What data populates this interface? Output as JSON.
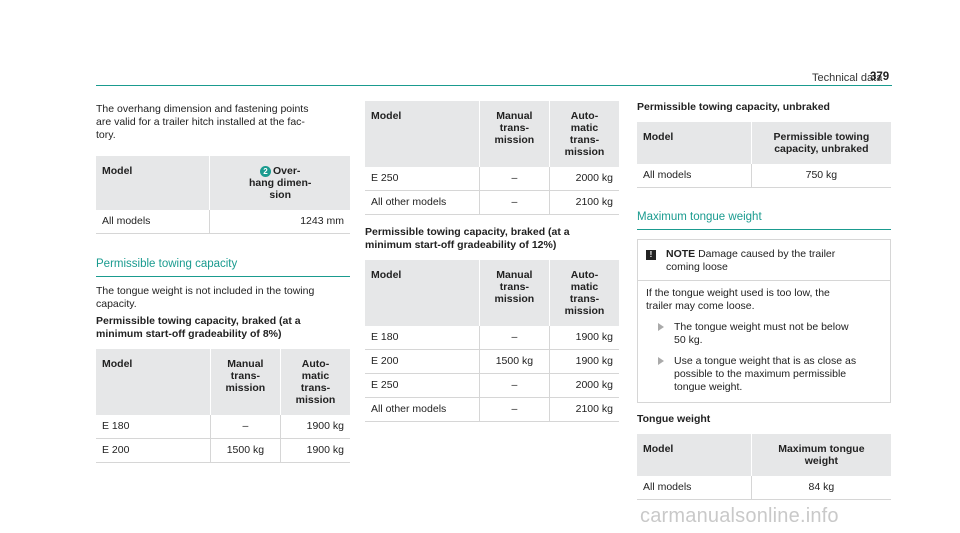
{
  "header": {
    "title": "Technical data",
    "page": "379"
  },
  "col1": {
    "intro": [
      "The overhang dimension and fastening points",
      "are valid for a trailer hitch installed at the fac-",
      "tory."
    ],
    "overhang_table": {
      "h_model": "Model",
      "h_badge": "2",
      "h_over": [
        "Over-",
        "hang dimen-",
        "sion"
      ],
      "row": {
        "model": "All models",
        "value": "1243 mm"
      }
    },
    "section_title": "Permissible towing capacity",
    "text": [
      "The tongue weight is not included in the towing",
      "capacity."
    ],
    "bold": [
      "Permissible towing capacity, braked (at a",
      "minimum start-off gradeability of 8%)"
    ],
    "table": {
      "h_model": "Model",
      "h_manual": [
        "Manual",
        "trans-",
        "mission"
      ],
      "h_auto": [
        "Auto-",
        "matic",
        "trans-",
        "mission"
      ],
      "rows": [
        {
          "model": "E 180",
          "manual": "–",
          "auto": "1900 kg"
        },
        {
          "model": "E 200",
          "manual": "1500 kg",
          "auto": "1900 kg"
        }
      ]
    }
  },
  "col2": {
    "table1": {
      "h_model": "Model",
      "h_manual": [
        "Manual",
        "trans-",
        "mission"
      ],
      "h_auto": [
        "Auto-",
        "matic",
        "trans-",
        "mission"
      ],
      "rows": [
        {
          "model": "E 250",
          "manual": "–",
          "auto": "2000 kg"
        },
        {
          "model": "All other models",
          "manual": "–",
          "auto": "2100 kg"
        }
      ]
    },
    "bold": [
      "Permissible towing capacity, braked (at a",
      "minimum start-off gradeability of 12%)"
    ],
    "table2": {
      "h_model": "Model",
      "h_manual": [
        "Manual",
        "trans-",
        "mission"
      ],
      "h_auto": [
        "Auto-",
        "matic",
        "trans-",
        "mission"
      ],
      "rows": [
        {
          "model": "E 180",
          "manual": "–",
          "auto": "1900 kg"
        },
        {
          "model": "E 200",
          "manual": "1500 kg",
          "auto": "1900 kg"
        },
        {
          "model": "E 250",
          "manual": "–",
          "auto": "2000 kg"
        },
        {
          "model": "All other models",
          "manual": "–",
          "auto": "2100 kg"
        }
      ]
    }
  },
  "col3": {
    "bold_unbraked": "Permissible towing capacity, unbraked",
    "unbraked_table": {
      "h_model": "Model",
      "h_value": [
        "Permissible towing",
        "capacity, unbraked"
      ],
      "row": {
        "model": "All models",
        "value": "750 kg"
      }
    },
    "section_title": "Maximum tongue weight",
    "note": {
      "icon": "!",
      "label": "NOTE",
      "text_1": "Damage caused by the trailer",
      "text_2": "coming loose",
      "body": [
        "If the tongue weight used is too low, the",
        "trailer may come loose."
      ],
      "bullet1": [
        "The tongue weight must not be below",
        "50 kg."
      ],
      "bullet2": [
        "Use a tongue weight that is as close as",
        "possible to the maximum permissible",
        "tongue weight."
      ]
    },
    "bold_tongue": "Tongue weight",
    "tongue_table": {
      "h_model": "Model",
      "h_value": [
        "Maximum tongue",
        "weight"
      ],
      "row": {
        "model": "All models",
        "value": "84 kg"
      }
    }
  },
  "watermark": "carmanualsonline.info",
  "colors": {
    "accent": "#1a9b8f",
    "header_bg": "#e6e7e8"
  }
}
